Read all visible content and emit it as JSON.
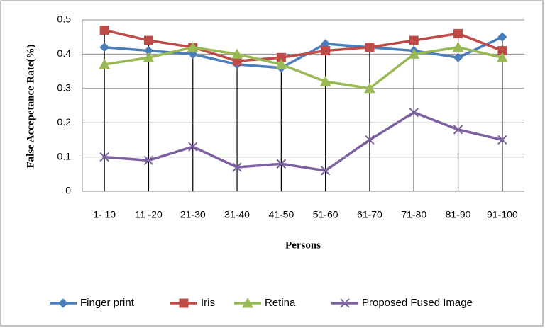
{
  "chart_data": {
    "type": "line",
    "x_label": "Persons",
    "y_label": "False Accepetance Rate(%)",
    "categories": [
      "1- 10",
      "11 -20",
      "21-30",
      "31-40",
      "41-50",
      "51-60",
      "61-70",
      "71-80",
      "81-90",
      "91-100"
    ],
    "series": [
      {
        "name": "Finger print",
        "color": "#4a7ebb",
        "marker": "diamond",
        "values": [
          0.42,
          0.41,
          0.4,
          0.37,
          0.36,
          0.43,
          0.42,
          0.41,
          0.39,
          0.45
        ]
      },
      {
        "name": "Iris",
        "color": "#be4b48",
        "marker": "square",
        "values": [
          0.47,
          0.44,
          0.42,
          0.38,
          0.39,
          0.41,
          0.42,
          0.44,
          0.46,
          0.41
        ]
      },
      {
        "name": "Retina",
        "color": "#98b954",
        "marker": "triangle",
        "values": [
          0.37,
          0.39,
          0.42,
          0.4,
          0.37,
          0.32,
          0.3,
          0.4,
          0.42,
          0.39
        ]
      },
      {
        "name": "Proposed Fused Image",
        "color": "#7d60a0",
        "marker": "x",
        "values": [
          0.1,
          0.09,
          0.13,
          0.07,
          0.08,
          0.06,
          0.15,
          0.23,
          0.18,
          0.15
        ]
      }
    ],
    "ylim": [
      0,
      0.5
    ],
    "yticks": [
      0,
      0.1,
      0.2,
      0.3,
      0.4,
      0.5
    ],
    "grid": true,
    "drop_lines": true,
    "legend": "bottom"
  }
}
